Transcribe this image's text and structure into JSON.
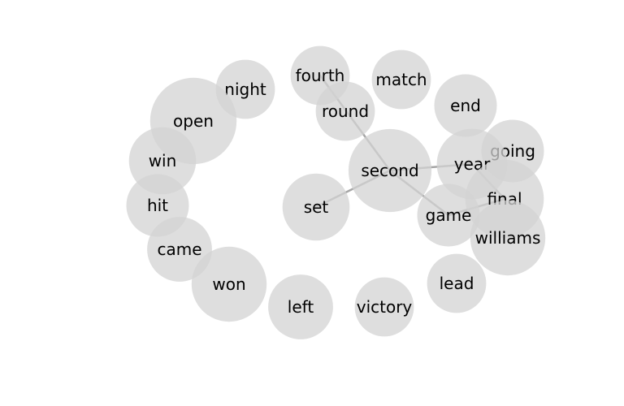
{
  "words": [
    {
      "id": "fourth",
      "label": "fourth",
      "weight": 0.52
    },
    {
      "id": "match",
      "label": "match",
      "weight": 0.52
    },
    {
      "id": "night",
      "label": "night",
      "weight": 0.52
    },
    {
      "id": "round",
      "label": "round",
      "weight": 0.52
    },
    {
      "id": "end",
      "label": "end",
      "weight": 0.55
    },
    {
      "id": "open",
      "label": "open",
      "weight": 0.76
    },
    {
      "id": "going",
      "label": "going",
      "weight": 0.55
    },
    {
      "id": "win",
      "label": "win",
      "weight": 0.59
    },
    {
      "id": "year",
      "label": "year",
      "weight": 0.62
    },
    {
      "id": "second",
      "label": "second",
      "weight": 0.73
    },
    {
      "id": "final",
      "label": "final",
      "weight": 0.69
    },
    {
      "id": "hit",
      "label": "hit",
      "weight": 0.55
    },
    {
      "id": "set",
      "label": "set",
      "weight": 0.59
    },
    {
      "id": "game",
      "label": "game",
      "weight": 0.55
    },
    {
      "id": "williams",
      "label": "williams",
      "weight": 0.66
    },
    {
      "id": "came",
      "label": "came",
      "weight": 0.57
    },
    {
      "id": "won",
      "label": "won",
      "weight": 0.66
    },
    {
      "id": "lead",
      "label": "lead",
      "weight": 0.52
    },
    {
      "id": "left",
      "label": "left",
      "weight": 0.57
    },
    {
      "id": "victory",
      "label": "victory",
      "weight": 0.52
    }
  ],
  "links": [
    {
      "source": "fourth",
      "target": "second"
    },
    {
      "source": "second",
      "target": "set"
    },
    {
      "source": "second",
      "target": "year"
    },
    {
      "source": "second",
      "target": "game"
    },
    {
      "source": "year",
      "target": "final"
    },
    {
      "source": "game",
      "target": "final"
    }
  ],
  "colors": {
    "bubble": "#d3d3d3",
    "edge": "#a6a6a6",
    "text": "#000000"
  }
}
